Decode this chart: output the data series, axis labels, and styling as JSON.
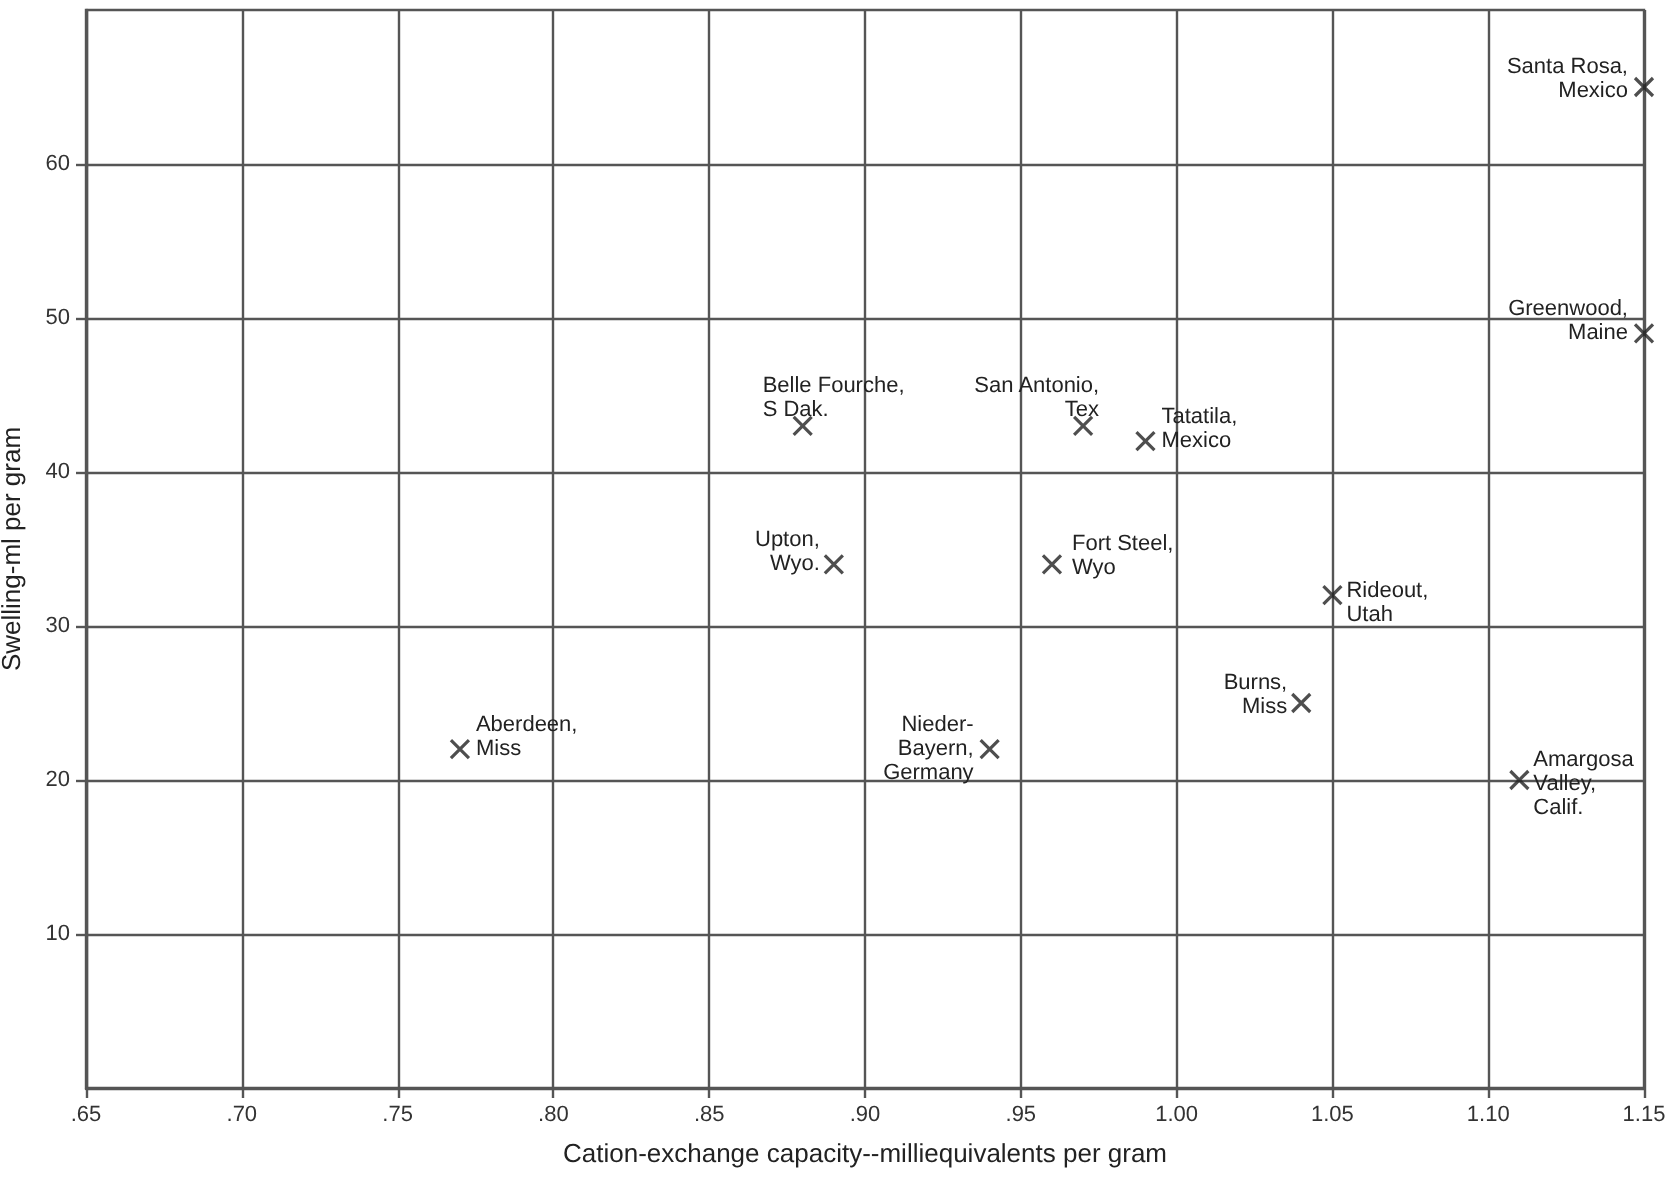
{
  "chart_data": {
    "type": "scatter",
    "xlabel": "Cation-exchange capacity--milliequivalents per gram",
    "ylabel": "Swelling-ml per gram",
    "x": [
      0.88,
      0.97,
      0.99,
      0.89,
      0.96,
      0.77,
      0.94,
      1.05,
      1.04,
      1.11,
      1.15,
      1.15
    ],
    "values": [
      43,
      43,
      42,
      34,
      34,
      22,
      22,
      32,
      25,
      20,
      65,
      49
    ],
    "color": "#222222",
    "marker": "cross",
    "grid": true,
    "xlim": [
      0.65,
      1.15
    ],
    "xticks": [
      {
        "value": 0.65,
        "label": ".65"
      },
      {
        "value": 0.7,
        "label": ".70"
      },
      {
        "value": 0.75,
        "label": ".75"
      },
      {
        "value": 0.8,
        "label": ".80"
      },
      {
        "value": 0.85,
        "label": ".85"
      },
      {
        "value": 0.9,
        "label": ".90"
      },
      {
        "value": 0.95,
        "label": ".95"
      },
      {
        "value": 1.0,
        "label": "1.00"
      },
      {
        "value": 1.05,
        "label": "1.05"
      },
      {
        "value": 1.1,
        "label": "1.10"
      },
      {
        "value": 1.15,
        "label": "1.15"
      }
    ],
    "ylim": [
      0,
      70
    ],
    "yticks": [
      10,
      20,
      30,
      40,
      50,
      60
    ],
    "annotations": [
      {
        "text": "Belle Fourche,\nS Dak.",
        "x": 0.88,
        "y": 43
      },
      {
        "text": "San Antonio,\nTex",
        "x": 0.97,
        "y": 43
      },
      {
        "text": "Tatatila,\nMexico",
        "x": 0.99,
        "y": 42
      },
      {
        "text": "Upton,\nWyo.",
        "x": 0.89,
        "y": 34
      },
      {
        "text": "Fort Steel,\nWyo",
        "x": 0.96,
        "y": 34
      },
      {
        "text": "Aberdeen,\nMiss",
        "x": 0.77,
        "y": 22
      },
      {
        "text": "Nieder-\nBayern,\nGermany",
        "x": 0.94,
        "y": 22
      },
      {
        "text": "Rideout,\nUtah",
        "x": 1.05,
        "y": 32
      },
      {
        "text": "Burns,\nMiss",
        "x": 1.04,
        "y": 25
      },
      {
        "text": "Amargosa\nValley,\nCalif.",
        "x": 1.11,
        "y": 20
      },
      {
        "text": "Santa Rosa,\nMexico",
        "x": 1.15,
        "y": 65
      },
      {
        "text": "Greenwood,\nMaine",
        "x": 1.15,
        "y": 49
      }
    ]
  }
}
